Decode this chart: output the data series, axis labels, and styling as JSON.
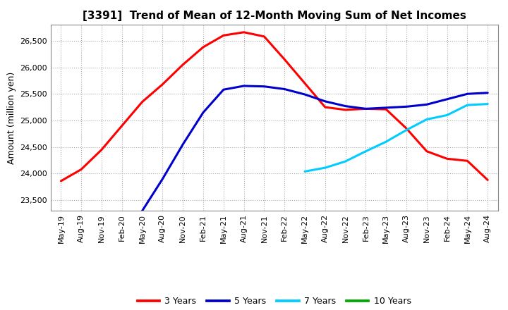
{
  "title": "[3391]  Trend of Mean of 12-Month Moving Sum of Net Incomes",
  "ylabel": "Amount (million yen)",
  "bg_color": "#ffffff",
  "plot_bg_color": "#ffffff",
  "ylim": [
    23300,
    26800
  ],
  "yticks": [
    23500,
    24000,
    24500,
    25000,
    25500,
    26000,
    26500
  ],
  "x_labels": [
    "May-19",
    "Aug-19",
    "Nov-19",
    "Feb-20",
    "May-20",
    "Aug-20",
    "Nov-20",
    "Feb-21",
    "May-21",
    "Aug-21",
    "Nov-21",
    "Feb-22",
    "May-22",
    "Aug-22",
    "Nov-22",
    "Feb-23",
    "May-23",
    "Aug-23",
    "Nov-23",
    "Feb-24",
    "May-24",
    "Aug-24"
  ],
  "series": {
    "3 Years": {
      "color": "#ff0000",
      "data_x": [
        0,
        1,
        2,
        3,
        4,
        5,
        6,
        7,
        8,
        9,
        10,
        11,
        12,
        13,
        14,
        15,
        16,
        17,
        18,
        19,
        20,
        21
      ],
      "data_y": [
        23860,
        24080,
        24450,
        24900,
        25350,
        25680,
        26050,
        26380,
        26600,
        26660,
        26580,
        26150,
        25700,
        25250,
        25200,
        25220,
        25210,
        24850,
        24420,
        24280,
        24240,
        23880
      ]
    },
    "5 Years": {
      "color": "#0000cc",
      "data_x": [
        4,
        5,
        6,
        7,
        8,
        9,
        10,
        11,
        12,
        13,
        14,
        15,
        16,
        17,
        18,
        19,
        20,
        21
      ],
      "data_y": [
        23300,
        23900,
        24550,
        25150,
        25580,
        25650,
        25640,
        25590,
        25490,
        25360,
        25270,
        25220,
        25240,
        25260,
        25300,
        25400,
        25500,
        25520
      ]
    },
    "7 Years": {
      "color": "#00ccff",
      "data_x": [
        12,
        13,
        14,
        15,
        16,
        17,
        18,
        19,
        20,
        21
      ],
      "data_y": [
        24040,
        24110,
        24230,
        24420,
        24600,
        24820,
        25020,
        25100,
        25290,
        25310
      ]
    },
    "10 Years": {
      "color": "#00aa00",
      "data_x": [],
      "data_y": []
    }
  },
  "legend_entries": [
    "3 Years",
    "5 Years",
    "7 Years",
    "10 Years"
  ],
  "legend_colors": [
    "#ff0000",
    "#0000cc",
    "#00ccff",
    "#00aa00"
  ],
  "grid_color": "#aaaaaa",
  "line_width": 2.2,
  "title_fontsize": 11,
  "tick_fontsize": 8,
  "ylabel_fontsize": 9,
  "legend_fontsize": 9
}
